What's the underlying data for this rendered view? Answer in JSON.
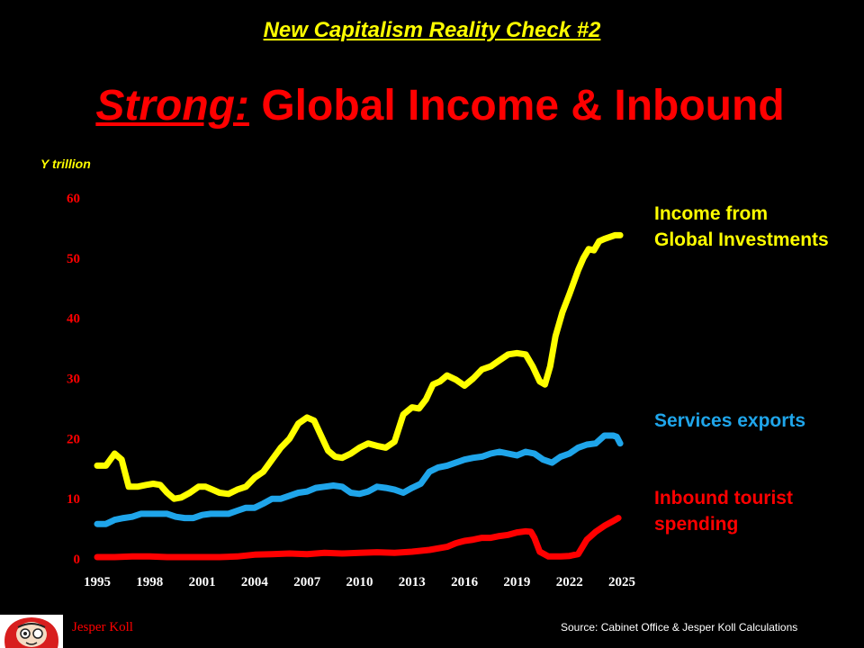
{
  "supertitle": "New Capitalism Reality Check #2",
  "title": {
    "emphasis": "Strong:",
    "rest": " Global Income & Inbound"
  },
  "colors": {
    "background": "#000000",
    "income": "#ffff00",
    "services": "#1fa5ea",
    "tourist": "#ff0000"
  },
  "chart_data": {
    "type": "line",
    "ylabel": "Y trillion",
    "xlabel": "",
    "ylim": [
      0,
      60
    ],
    "yticks": [
      0,
      10,
      20,
      30,
      40,
      50,
      60
    ],
    "xlim": [
      1995,
      2025
    ],
    "xticks": [
      1995,
      1998,
      2001,
      2004,
      2007,
      2010,
      2013,
      2016,
      2019,
      2022,
      2025
    ],
    "grid": false,
    "legend_placement": "right",
    "series": [
      {
        "name": "Income from Global Investments",
        "x": [
          1995,
          1995.5,
          1996,
          1996.4,
          1996.8,
          1997.3,
          1997.8,
          1998.2,
          1998.6,
          1999,
          1999.4,
          1999.8,
          2000.3,
          2000.8,
          2001.2,
          2001.6,
          2002,
          2002.5,
          2003,
          2003.5,
          2004,
          2004.5,
          2005,
          2005.5,
          2006,
          2006.5,
          2007,
          2007.4,
          2007.8,
          2008.2,
          2008.6,
          2009,
          2009.5,
          2010,
          2010.5,
          2011,
          2011.5,
          2012,
          2012.5,
          2013,
          2013.4,
          2013.8,
          2014.2,
          2014.6,
          2015,
          2015.5,
          2016,
          2016.5,
          2017,
          2017.5,
          2018,
          2018.5,
          2019,
          2019.5,
          2019.9,
          2020.3,
          2020.6,
          2020.9,
          2021.2,
          2021.6,
          2022,
          2022.5,
          2022.8,
          2023.1,
          2023.4,
          2023.7,
          2024,
          2024.3,
          2024.6,
          2024.9
        ],
        "values": [
          15.5,
          15.5,
          17.5,
          16.5,
          12,
          12,
          12.3,
          12.5,
          12.3,
          11,
          10,
          10.2,
          11,
          12,
          12,
          11.5,
          11,
          10.8,
          11.5,
          12,
          13.5,
          14.5,
          16.5,
          18.5,
          20,
          22.5,
          23.5,
          23,
          20.5,
          18,
          17,
          16.8,
          17.5,
          18.5,
          19.2,
          18.8,
          18.5,
          19.5,
          24,
          25.2,
          25,
          26.5,
          29,
          29.5,
          30.5,
          29.8,
          28.8,
          30,
          31.5,
          32,
          33,
          34,
          34.2,
          34,
          32,
          29.5,
          29,
          32,
          37,
          41,
          44,
          48,
          50,
          51.5,
          51.3,
          52.8,
          53.2,
          53.5,
          53.8,
          53.8
        ]
      },
      {
        "name": "Services exports",
        "x": [
          1995,
          1995.5,
          1996,
          1996.5,
          1997,
          1997.5,
          1998,
          1998.5,
          1999,
          1999.5,
          2000,
          2000.5,
          2001,
          2001.5,
          2002,
          2002.5,
          2003,
          2003.5,
          2004,
          2004.5,
          2005,
          2005.5,
          2006,
          2006.5,
          2007,
          2007.5,
          2008,
          2008.5,
          2009,
          2009.5,
          2010,
          2010.5,
          2011,
          2011.5,
          2012,
          2012.5,
          2013,
          2013.5,
          2014,
          2014.5,
          2015,
          2015.5,
          2016,
          2016.5,
          2017,
          2017.5,
          2018,
          2018.5,
          2019,
          2019.5,
          2020,
          2020.5,
          2021,
          2021.5,
          2022,
          2022.5,
          2023,
          2023.5,
          2024,
          2024.3,
          2024.5,
          2024.7,
          2024.9
        ],
        "values": [
          5.8,
          5.8,
          6.5,
          6.8,
          7,
          7.5,
          7.5,
          7.5,
          7.5,
          7,
          6.8,
          6.8,
          7.3,
          7.5,
          7.5,
          7.5,
          8,
          8.5,
          8.5,
          9.2,
          10,
          10,
          10.5,
          11,
          11.2,
          11.8,
          12,
          12.2,
          12,
          11,
          10.8,
          11.2,
          12,
          11.8,
          11.5,
          11,
          11.8,
          12.5,
          14.5,
          15.2,
          15.5,
          16,
          16.5,
          16.8,
          17,
          17.5,
          17.8,
          17.5,
          17.2,
          17.8,
          17.5,
          16.5,
          16,
          17,
          17.5,
          18.5,
          19,
          19.2,
          20.5,
          20.5,
          20.5,
          20.3,
          19.2
        ]
      },
      {
        "name": "Inbound tourist spending",
        "x": [
          1995,
          1996,
          1997,
          1998,
          1999,
          2000,
          2001,
          2002,
          2003,
          2004,
          2005,
          2006,
          2007,
          2008,
          2009,
          2010,
          2011,
          2012,
          2013,
          2014,
          2015,
          2015.5,
          2016,
          2016.5,
          2017,
          2017.5,
          2018,
          2018.5,
          2019,
          2019.5,
          2019.8,
          2020,
          2020.3,
          2020.8,
          2021.5,
          2022,
          2022.5,
          2023,
          2023.5,
          2024,
          2024.5,
          2024.8
        ],
        "values": [
          0.3,
          0.3,
          0.4,
          0.4,
          0.3,
          0.3,
          0.3,
          0.3,
          0.4,
          0.7,
          0.8,
          0.9,
          0.8,
          1,
          0.9,
          1,
          1.1,
          1,
          1.2,
          1.5,
          2,
          2.6,
          3,
          3.2,
          3.5,
          3.5,
          3.8,
          4,
          4.4,
          4.6,
          4.5,
          3.5,
          1.2,
          0.4,
          0.4,
          0.5,
          0.8,
          3.2,
          4.5,
          5.5,
          6.3,
          6.8
        ]
      }
    ]
  },
  "legend": {
    "income": [
      "Income from",
      "Global Investments"
    ],
    "services": "Services exports",
    "tourist": [
      "Inbound tourist",
      "spending"
    ]
  },
  "source": "Source: Cabinet Office & Jesper Koll Calculations",
  "author": "Jesper Koll"
}
